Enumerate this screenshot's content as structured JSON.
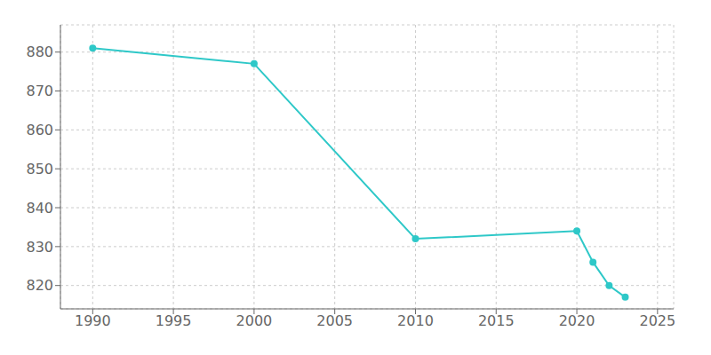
{
  "chart_data": {
    "type": "line",
    "x": [
      1990,
      2000,
      2010,
      2020,
      2021,
      2022,
      2023
    ],
    "values": [
      881,
      877,
      832,
      834,
      826,
      820,
      817
    ],
    "color": "#2ec8c8",
    "marker": "circle",
    "xlim": [
      1988,
      2026
    ],
    "ylim": [
      814,
      887
    ],
    "xticks": [
      1990,
      1995,
      2000,
      2005,
      2010,
      2015,
      2020,
      2025
    ],
    "yticks": [
      820,
      830,
      840,
      850,
      860,
      870,
      880
    ],
    "grid": true
  }
}
